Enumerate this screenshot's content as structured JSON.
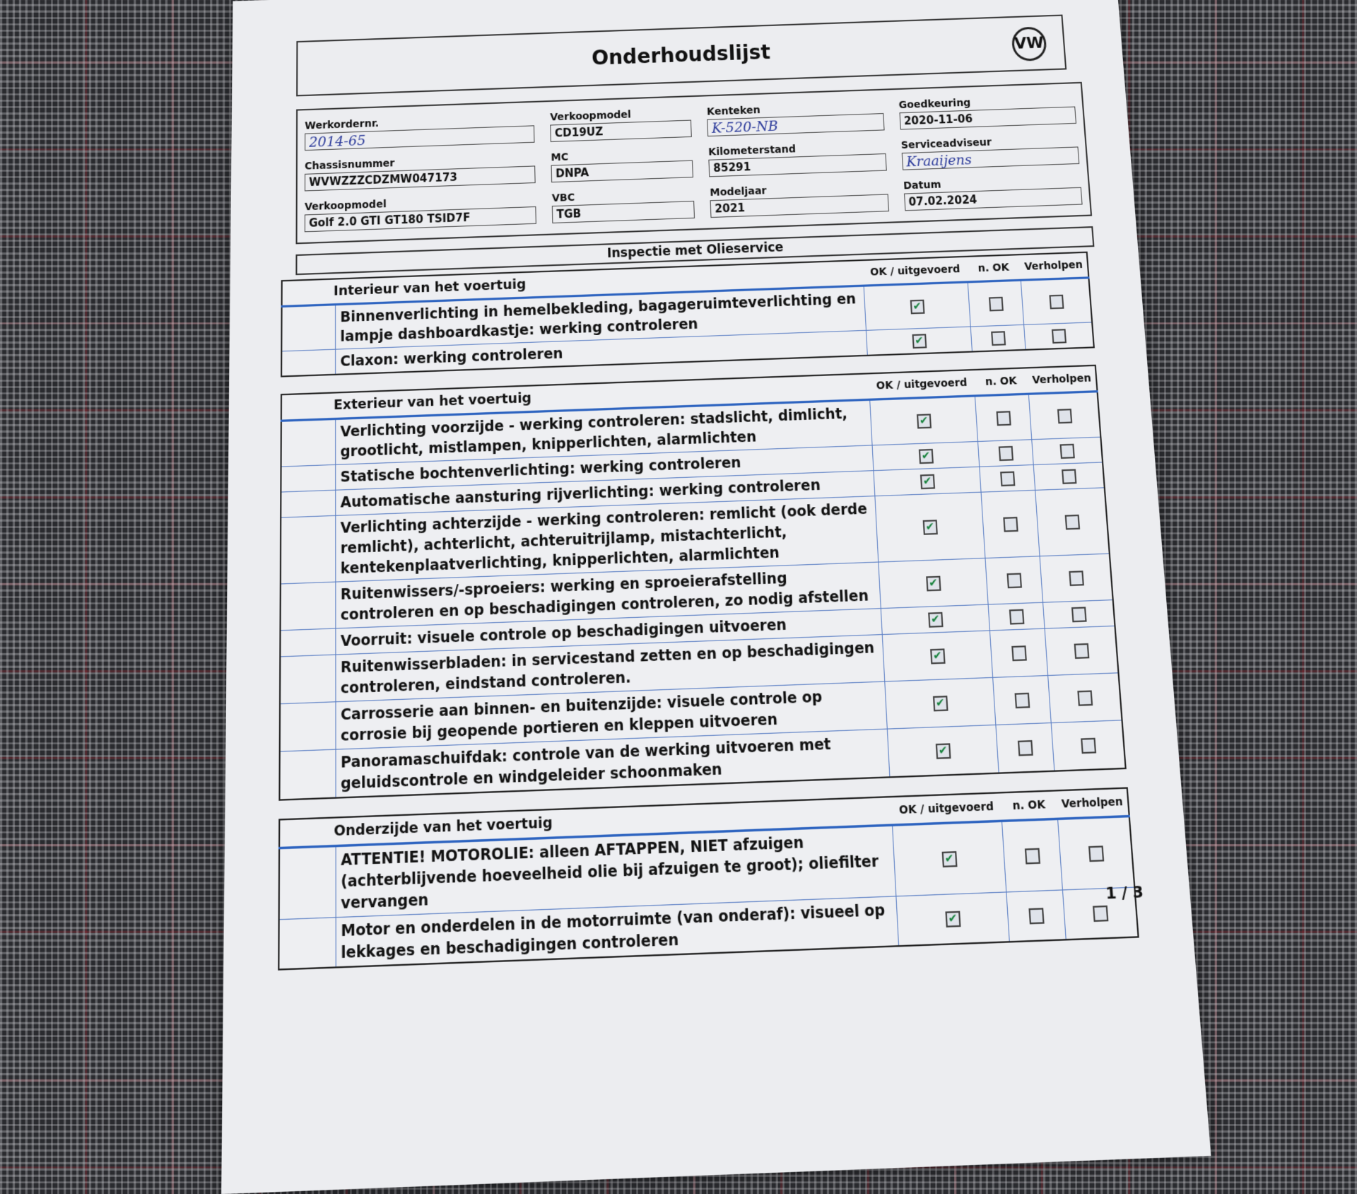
{
  "title": "Onderhoudslijst",
  "logo": "VW",
  "fields": [
    {
      "label": "Werkordernr.",
      "value": "2014-65",
      "handwritten": true
    },
    {
      "label": "Verkoopmodel",
      "value": "CD19UZ"
    },
    {
      "label": "Kenteken",
      "value": "K-520-NB",
      "handwritten": true
    },
    {
      "label": "Goedkeuring",
      "value": "2020-11-06"
    },
    {
      "label": "Chassisnummer",
      "value": "WVWZZZCDZMW047173"
    },
    {
      "label": "MC",
      "value": "DNPA"
    },
    {
      "label": "Kilometerstand",
      "value": "85291"
    },
    {
      "label": "Serviceadviseur",
      "value": "Kraaijens",
      "handwritten": true
    },
    {
      "label": "Verkoopmodel",
      "value": "Golf 2.0 GTI GT180 TSID7F"
    },
    {
      "label": "VBC",
      "value": "TGB"
    },
    {
      "label": "Modeljaar",
      "value": "2021"
    },
    {
      "label": "Datum",
      "value": "07.02.2024"
    }
  ],
  "section_title": "Inspectie met Olieservice",
  "columns": {
    "ok": "OK / uitgevoerd",
    "nok": "n. OK",
    "fixed": "Verholpen"
  },
  "groups": [
    {
      "title": "Interieur van het voertuig",
      "items": [
        {
          "text": "Binnenverlichting in hemelbekleding, bagageruimteverlichting en lampje dashboardkastje: werking controleren",
          "ok": true,
          "nok": false,
          "fixed": false
        },
        {
          "text": "Claxon: werking controleren",
          "ok": true,
          "nok": false,
          "fixed": false
        }
      ]
    },
    {
      "title": "Exterieur van het voertuig",
      "items": [
        {
          "text": "Verlichting voorzijde - werking controleren: stadslicht, dimlicht, grootlicht, mistlampen, knipperlichten, alarmlichten",
          "ok": true,
          "nok": false,
          "fixed": false
        },
        {
          "text": "Statische bochtenverlichting: werking controleren",
          "ok": true,
          "nok": false,
          "fixed": false
        },
        {
          "text": "Automatische aansturing rijverlichting: werking controleren",
          "ok": true,
          "nok": false,
          "fixed": false
        },
        {
          "text": "Verlichting achterzijde - werking controleren: remlicht (ook derde remlicht), achterlicht, achteruitrijlamp, mistachterlicht, kentekenplaatverlichting, knipperlichten, alarmlichten",
          "ok": true,
          "nok": false,
          "fixed": false
        },
        {
          "text": "Ruitenwissers/-sproeiers: werking en sproeierafstelling controleren en op beschadigingen controleren, zo nodig afstellen",
          "ok": true,
          "nok": false,
          "fixed": false
        },
        {
          "text": "Voorruit: visuele controle op beschadigingen uitvoeren",
          "ok": true,
          "nok": false,
          "fixed": false
        },
        {
          "text": "Ruitenwisserbladen: in servicestand zetten en op beschadigingen controleren, eindstand controleren.",
          "ok": true,
          "nok": false,
          "fixed": false
        },
        {
          "text": "Carrosserie aan binnen- en buitenzijde: visuele controle op corrosie bij geopende portieren en kleppen uitvoeren",
          "ok": true,
          "nok": false,
          "fixed": false
        },
        {
          "text": "Panoramaschuifdak: controle van de werking uitvoeren met geluidscontrole en windgeleider schoonmaken",
          "ok": true,
          "nok": false,
          "fixed": false
        }
      ]
    },
    {
      "title": "Onderzijde van het voertuig",
      "items": [
        {
          "text": "ATTENTIE! MOTOROLIE: alleen AFTAPPEN, NIET afzuigen (achterblijvende hoeveelheid olie bij afzuigen te groot); oliefilter vervangen",
          "ok": true,
          "nok": false,
          "fixed": false
        },
        {
          "text": "Motor en onderdelen in de motorruimte (van onderaf): visueel op lekkages en beschadigingen controleren",
          "ok": true,
          "nok": false,
          "fixed": false
        }
      ]
    }
  ],
  "page_number": "1 / 3",
  "colors": {
    "check": "#14803a",
    "rule_blue": "#2e64c0",
    "handwriting": "#2b3a9a"
  }
}
